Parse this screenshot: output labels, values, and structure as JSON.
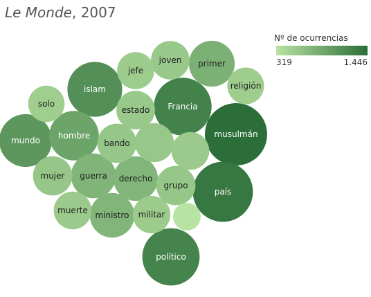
{
  "title": {
    "italic": "Le Monde",
    "rest": ", 2007"
  },
  "legend": {
    "title": "Nº de ocurrencias",
    "min_label": "319",
    "max_label": "1.446",
    "color_low": "#b9e3a2",
    "color_high": "#2b6e39"
  },
  "chart_data": {
    "type": "bubble",
    "title": "Le Monde, 2007",
    "size_and_color_measure": "Nº de ocurrencias",
    "range": [
      319,
      1446
    ],
    "bubbles": [
      {
        "label": "musulmán",
        "value": 1446
      },
      {
        "label": "país",
        "value": 1350
      },
      {
        "label": "Francia",
        "value": 1250
      },
      {
        "label": "político",
        "value": 1230
      },
      {
        "label": "islam",
        "value": 1130
      },
      {
        "label": "mundo",
        "value": 1050
      },
      {
        "label": "hombre",
        "value": 930
      },
      {
        "label": "primer",
        "value": 800
      },
      {
        "label": "guerra",
        "value": 770
      },
      {
        "label": "derecho",
        "value": 760
      },
      {
        "label": "ministro",
        "value": 760
      },
      {
        "label": "grupo",
        "value": 600
      },
      {
        "label": "mujer",
        "value": 600
      },
      {
        "label": "bando",
        "value": 600
      },
      {
        "label": "",
        "value": 590
      },
      {
        "label": "joven",
        "value": 580
      },
      {
        "label": "estado",
        "value": 580
      },
      {
        "label": "",
        "value": 560
      },
      {
        "label": "muerte",
        "value": 560
      },
      {
        "label": "militar",
        "value": 550
      },
      {
        "label": "jefe",
        "value": 540
      },
      {
        "label": "religión",
        "value": 530
      },
      {
        "label": "solo",
        "value": 520
      },
      {
        "label": "",
        "value": 319
      }
    ]
  }
}
